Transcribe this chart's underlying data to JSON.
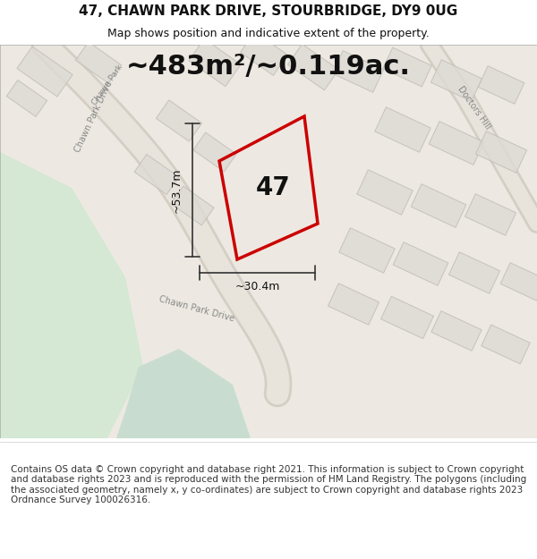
{
  "title_line1": "47, CHAWN PARK DRIVE, STOURBRIDGE, DY9 0UG",
  "title_line2": "Map shows position and indicative extent of the property.",
  "area_text": "~483m²/~0.119ac.",
  "width_label": "~30.4m",
  "height_label": "~53.7m",
  "property_number": "47",
  "footer_text": "Contains OS data © Crown copyright and database right 2021. This information is subject to Crown copyright and database rights 2023 and is reproduced with the permission of HM Land Registry. The polygons (including the associated geometry, namely x, y co-ordinates) are subject to Crown copyright and database rights 2023 Ordnance Survey 100026316.",
  "bg_color": "#f0ede8",
  "map_bg": "#f5f3ef",
  "road_color": "#e8e0d0",
  "building_fill": "#e0ddd8",
  "building_edge": "#c8c4be",
  "property_outline_color": "#cc0000",
  "property_fill": "none",
  "dim_line_color": "#333333",
  "text_color": "#111111",
  "green_area_color": "#d4e8d4",
  "road_line_color": "#d0c8b8",
  "street_text_color": "#888888",
  "title_fontsize": 11,
  "subtitle_fontsize": 9,
  "area_fontsize": 22,
  "label_fontsize": 9,
  "number_fontsize": 20,
  "footer_fontsize": 7.5
}
